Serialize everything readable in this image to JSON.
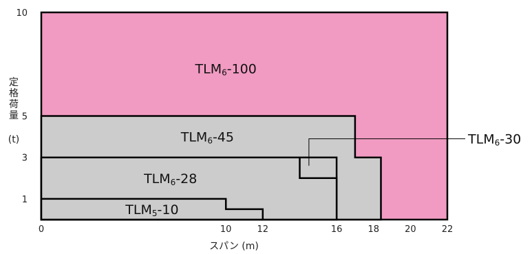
{
  "chart_data": {
    "type": "area",
    "xlabel": "スパン (m)",
    "ylabel": "定格荷量",
    "ylabel_unit": "(t)",
    "xlim": [
      0,
      22
    ],
    "ylim": [
      0,
      10
    ],
    "xticks": [
      0,
      10,
      12,
      16,
      18,
      20,
      22
    ],
    "yticks": [
      1,
      3,
      5,
      10
    ],
    "colors": {
      "pink": "#f19bc2",
      "gray": "#cccccc",
      "line": "#000000"
    },
    "series": [
      {
        "name": "TLM6-100",
        "label_main": "TLM",
        "label_sub": "6",
        "label_tail": "-100",
        "fill": "pink",
        "outline": [
          [
            0,
            0
          ],
          [
            0,
            10
          ],
          [
            22,
            10
          ],
          [
            22,
            0
          ]
        ],
        "label_pos": [
          10,
          7.3
        ]
      },
      {
        "name": "TLM6-45",
        "label_main": "TLM",
        "label_sub": "6",
        "label_tail": "-45",
        "fill": "gray",
        "outline": [
          [
            0,
            0
          ],
          [
            0,
            5
          ],
          [
            17,
            5
          ],
          [
            17,
            3
          ],
          [
            18.4,
            3
          ],
          [
            18.4,
            0
          ]
        ],
        "label_pos": [
          9,
          4
        ]
      },
      {
        "name": "TLM6-30",
        "label_main": "TLM",
        "label_sub": "6",
        "label_tail": "-30",
        "fill": "gray",
        "outline": [
          [
            0,
            0
          ],
          [
            0,
            3
          ],
          [
            16,
            3
          ],
          [
            16,
            0
          ]
        ],
        "label_pos": null
      },
      {
        "name": "TLM6-28",
        "label_main": "TLM",
        "label_sub": "6",
        "label_tail": "-28",
        "fill": "gray",
        "outline": [
          [
            0,
            0
          ],
          [
            0,
            3
          ],
          [
            14,
            3
          ],
          [
            14,
            2
          ],
          [
            16,
            2
          ],
          [
            16,
            0
          ]
        ],
        "label_pos": [
          7,
          2
        ]
      },
      {
        "name": "TLM5-10",
        "label_main": "TLM",
        "label_sub": "5",
        "label_tail": "-10",
        "fill": "gray",
        "outline": [
          [
            0,
            0
          ],
          [
            0,
            1
          ],
          [
            10,
            1
          ],
          [
            10,
            0.5
          ],
          [
            12,
            0.5
          ],
          [
            12,
            0
          ]
        ],
        "label_pos": [
          6,
          0.5
        ]
      }
    ],
    "callout": {
      "series": "TLM6-30",
      "label_main": "TLM",
      "label_sub": "6",
      "label_tail": "-30",
      "anchor": [
        14.5,
        2.6
      ],
      "elbow": [
        14.5,
        3.9
      ]
    }
  }
}
